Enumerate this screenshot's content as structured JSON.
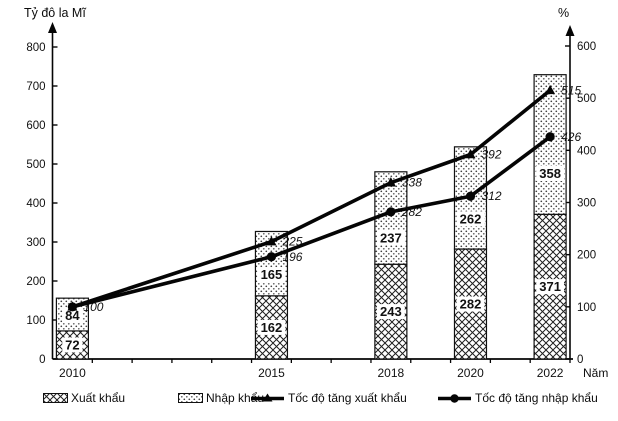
{
  "colors": {
    "ink": "#000000",
    "paper": "#ffffff"
  },
  "chart_data": {
    "type": "combo",
    "subtype": "stacked-bar + line",
    "categories": [
      2010,
      2015,
      2018,
      2020,
      2022
    ],
    "x_axis_label": "Năm",
    "left_axis": {
      "label": "Tỷ đô la Mĩ",
      "max": 800,
      "ticks": [
        0,
        100,
        200,
        300,
        400,
        500,
        600,
        700,
        800
      ]
    },
    "right_axis": {
      "label": "%",
      "max": 600,
      "ticks": [
        0,
        100,
        200,
        300,
        400,
        500,
        600
      ]
    },
    "bar_series": [
      {
        "name": "Xuất khẩu",
        "pattern": "crosshatch",
        "axis": "left",
        "values": [
          72,
          162,
          243,
          282,
          371
        ],
        "value_labels": [
          "72",
          "162",
          "243",
          "282",
          "371"
        ]
      },
      {
        "name": "Nhập khẩu",
        "pattern": "dots",
        "axis": "left",
        "values": [
          84,
          165,
          237,
          262,
          358
        ],
        "value_labels": [
          "84",
          "165",
          "237",
          "262",
          "358"
        ]
      }
    ],
    "line_series": [
      {
        "name": "Tốc độ tăng xuất khẩu",
        "marker": "triangle",
        "axis": "right",
        "values": [
          100,
          225,
          338,
          392,
          515
        ],
        "point_labels": [
          "100",
          "225",
          "338",
          "392",
          "515"
        ]
      },
      {
        "name": "Tốc độ tăng nhập khẩu",
        "marker": "circle",
        "axis": "right",
        "values": [
          100,
          196,
          282,
          312,
          426
        ],
        "point_labels": [
          "",
          "196",
          "282",
          "312",
          "426"
        ]
      }
    ],
    "stacked": true,
    "grid": false,
    "legend_position": "bottom"
  },
  "legend": {
    "items": [
      {
        "label": "Xuất khẩu",
        "swatch": "crosshatch-bar"
      },
      {
        "label": "Nhập khẩu",
        "swatch": "dotted-bar"
      },
      {
        "label": "Tốc độ tăng xuất khẩu",
        "swatch": "line-triangle"
      },
      {
        "label": "Tốc độ tăng nhập khẩu",
        "swatch": "line-circle"
      }
    ]
  }
}
